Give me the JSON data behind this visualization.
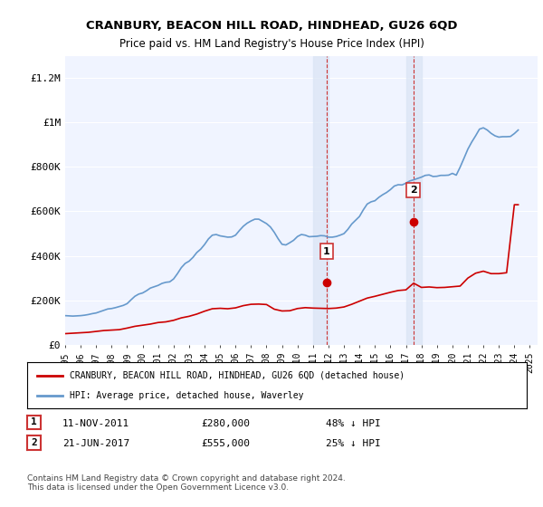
{
  "title": "CRANBURY, BEACON HILL ROAD, HINDHEAD, GU26 6QD",
  "subtitle": "Price paid vs. HM Land Registry's House Price Index (HPI)",
  "ylabel_ticks": [
    "£0",
    "£200K",
    "£400K",
    "£600K",
    "£800K",
    "£1M",
    "£1.2M"
  ],
  "ytick_values": [
    0,
    200000,
    400000,
    600000,
    800000,
    1000000,
    1200000
  ],
  "ylim": [
    0,
    1300000
  ],
  "background_color": "#ffffff",
  "plot_bg_color": "#f0f4ff",
  "grid_color": "#ffffff",
  "legend_label_red": "CRANBURY, BEACON HILL ROAD, HINDHEAD, GU26 6QD (detached house)",
  "legend_label_blue": "HPI: Average price, detached house, Waverley",
  "footnote": "Contains HM Land Registry data © Crown copyright and database right 2024.\nThis data is licensed under the Open Government Licence v3.0.",
  "sale1_label": "1",
  "sale1_date": "11-NOV-2011",
  "sale1_price": "£280,000",
  "sale1_hpi": "48% ↓ HPI",
  "sale2_label": "2",
  "sale2_date": "21-JUN-2017",
  "sale2_price": "£555,000",
  "sale2_hpi": "25% ↓ HPI",
  "red_color": "#cc0000",
  "blue_color": "#6699cc",
  "highlight_color": "#dce6f5",
  "vline_color": "#cc3333",
  "marker1_x": 2011.87,
  "marker1_y": 280000,
  "marker2_x": 2017.47,
  "marker2_y": 555000,
  "hpi_data": {
    "years": [
      1995.0,
      1995.25,
      1995.5,
      1995.75,
      1996.0,
      1996.25,
      1996.5,
      1996.75,
      1997.0,
      1997.25,
      1997.5,
      1997.75,
      1998.0,
      1998.25,
      1998.5,
      1998.75,
      1999.0,
      1999.25,
      1999.5,
      1999.75,
      2000.0,
      2000.25,
      2000.5,
      2000.75,
      2001.0,
      2001.25,
      2001.5,
      2001.75,
      2002.0,
      2002.25,
      2002.5,
      2002.75,
      2003.0,
      2003.25,
      2003.5,
      2003.75,
      2004.0,
      2004.25,
      2004.5,
      2004.75,
      2005.0,
      2005.25,
      2005.5,
      2005.75,
      2006.0,
      2006.25,
      2006.5,
      2006.75,
      2007.0,
      2007.25,
      2007.5,
      2007.75,
      2008.0,
      2008.25,
      2008.5,
      2008.75,
      2009.0,
      2009.25,
      2009.5,
      2009.75,
      2010.0,
      2010.25,
      2010.5,
      2010.75,
      2011.0,
      2011.25,
      2011.5,
      2011.75,
      2012.0,
      2012.25,
      2012.5,
      2012.75,
      2013.0,
      2013.25,
      2013.5,
      2013.75,
      2014.0,
      2014.25,
      2014.5,
      2014.75,
      2015.0,
      2015.25,
      2015.5,
      2015.75,
      2016.0,
      2016.25,
      2016.5,
      2016.75,
      2017.0,
      2017.25,
      2017.5,
      2017.75,
      2018.0,
      2018.25,
      2018.5,
      2018.75,
      2019.0,
      2019.25,
      2019.5,
      2019.75,
      2020.0,
      2020.25,
      2020.5,
      2020.75,
      2021.0,
      2021.25,
      2021.5,
      2021.75,
      2022.0,
      2022.25,
      2022.5,
      2022.75,
      2023.0,
      2023.25,
      2023.5,
      2023.75,
      2024.0,
      2024.25
    ],
    "values": [
      131000,
      130000,
      129000,
      130000,
      131000,
      133000,
      136000,
      140000,
      143000,
      149000,
      155000,
      161000,
      163000,
      167000,
      172000,
      177000,
      185000,
      202000,
      218000,
      228000,
      233000,
      243000,
      255000,
      261000,
      267000,
      276000,
      281000,
      283000,
      296000,
      320000,
      347000,
      366000,
      376000,
      393000,
      415000,
      430000,
      451000,
      476000,
      493000,
      496000,
      490000,
      487000,
      484000,
      485000,
      493000,
      514000,
      533000,
      547000,
      557000,
      565000,
      565000,
      555000,
      545000,
      530000,
      506000,
      477000,
      452000,
      449000,
      459000,
      470000,
      487000,
      496000,
      493000,
      486000,
      487000,
      488000,
      491000,
      490000,
      484000,
      484000,
      487000,
      493000,
      500000,
      519000,
      543000,
      560000,
      577000,
      607000,
      633000,
      643000,
      648000,
      663000,
      675000,
      685000,
      698000,
      714000,
      720000,
      719000,
      727000,
      737000,
      742000,
      748000,
      754000,
      762000,
      764000,
      757000,
      758000,
      762000,
      762000,
      763000,
      771000,
      763000,
      799000,
      839000,
      880000,
      912000,
      940000,
      970000,
      976000,
      966000,
      951000,
      940000,
      934000,
      936000,
      936000,
      937000,
      950000,
      966000
    ]
  },
  "red_data": {
    "years": [
      1995.0,
      1995.5,
      1996.0,
      1996.5,
      1997.0,
      1997.5,
      1998.0,
      1998.5,
      1999.0,
      1999.5,
      2000.0,
      2000.5,
      2001.0,
      2001.5,
      2002.0,
      2002.5,
      2003.0,
      2003.5,
      2004.0,
      2004.5,
      2005.0,
      2005.5,
      2006.0,
      2006.5,
      2007.0,
      2007.5,
      2008.0,
      2008.5,
      2009.0,
      2009.5,
      2010.0,
      2010.5,
      2011.0,
      2011.5,
      2012.0,
      2012.5,
      2013.0,
      2013.5,
      2014.0,
      2014.5,
      2015.0,
      2015.5,
      2016.0,
      2016.5,
      2017.0,
      2017.5,
      2018.0,
      2018.5,
      2019.0,
      2019.5,
      2020.0,
      2020.5,
      2021.0,
      2021.5,
      2022.0,
      2022.5,
      2023.0,
      2023.5,
      2024.0,
      2024.25
    ],
    "values": [
      50000,
      52000,
      54000,
      56000,
      60000,
      64000,
      66000,
      68000,
      75000,
      83000,
      88000,
      93000,
      100000,
      103000,
      110000,
      121000,
      128000,
      138000,
      151000,
      162000,
      164000,
      162000,
      166000,
      176000,
      182000,
      183000,
      181000,
      160000,
      152000,
      153000,
      163000,
      167000,
      165000,
      164000,
      163000,
      165000,
      170000,
      182000,
      196000,
      210000,
      218000,
      227000,
      236000,
      244000,
      247000,
      277000,
      258000,
      260000,
      257000,
      258000,
      261000,
      264000,
      300000,
      322000,
      331000,
      320000,
      320000,
      324000,
      630000,
      630000
    ]
  },
  "highlight_x_start1": 2011.0,
  "highlight_x_end1": 2012.0,
  "highlight_x_start2": 2017.0,
  "highlight_x_end2": 2018.0,
  "xmin": 1995,
  "xmax": 2025.5,
  "xtick_years": [
    1995,
    1996,
    1997,
    1998,
    1999,
    2000,
    2001,
    2002,
    2003,
    2004,
    2005,
    2006,
    2007,
    2008,
    2009,
    2010,
    2011,
    2012,
    2013,
    2014,
    2015,
    2016,
    2017,
    2018,
    2019,
    2020,
    2021,
    2022,
    2023,
    2024,
    2025
  ]
}
